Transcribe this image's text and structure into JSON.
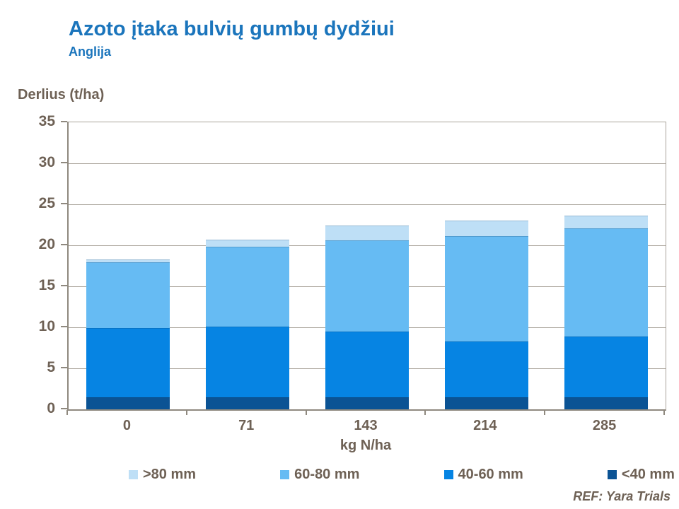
{
  "chart_data": {
    "type": "bar",
    "stacked": true,
    "title": "Azoto įtaka bulvių gumbų dydžiui",
    "subtitle": "Anglija",
    "ylabel": "Derlius (t/ha)",
    "xlabel": "kg N/ha",
    "categories": [
      "0",
      "71",
      "143",
      "214",
      "285"
    ],
    "series": [
      {
        "name": "<40 mm",
        "color": "#0b5394",
        "values": [
          1.5,
          1.5,
          1.5,
          1.5,
          1.5
        ]
      },
      {
        "name": "40-60 mm",
        "color": "#0684e3",
        "values": [
          8.4,
          8.6,
          8.0,
          6.8,
          7.4
        ]
      },
      {
        "name": "60-80 mm",
        "color": "#66bbf3",
        "values": [
          8.0,
          9.7,
          11.1,
          12.8,
          13.2
        ]
      },
      {
        "name": ">80 mm",
        "color": "#bedff6",
        "values": [
          0.4,
          0.9,
          1.8,
          1.9,
          1.5
        ]
      }
    ],
    "stack_totals": [
      18.3,
      20.7,
      22.4,
      23.0,
      23.6
    ],
    "ylim": [
      0,
      35
    ],
    "ytick_step": 5,
    "grid": true,
    "legend_position": "bottom",
    "legend_order": [
      ">80 mm",
      "60-80 mm",
      "40-60 mm",
      "<40 mm"
    ]
  },
  "footer": {
    "ref_label": "REF: Yara Trials"
  },
  "colors": {
    "title_text": "#1b75bc",
    "axis_text": "#6e6155",
    "gridline": "#aaa49b",
    "axis_line": "#8f897f",
    "background": "#ffffff"
  }
}
